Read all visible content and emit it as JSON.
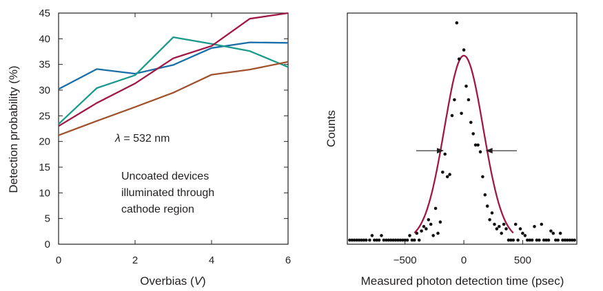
{
  "chart_data": [
    {
      "type": "line",
      "xlabel_prefix": "Overbias (",
      "xlabel_var": "V",
      "xlabel_suffix": ")",
      "ylabel": "Detection probability (%)",
      "xlim": [
        0,
        6
      ],
      "ylim": [
        0,
        45
      ],
      "x_ticks": [
        0,
        2,
        4,
        6
      ],
      "y_ticks": [
        0,
        5,
        10,
        15,
        20,
        25,
        30,
        35,
        40,
        45
      ],
      "grid": false,
      "annotation_lambda_symbol": "λ",
      "annotation_lambda_rest": " = 532 nm",
      "annotation_lines": [
        "Uncoated devices",
        "illuminated through",
        "cathode region"
      ],
      "series": [
        {
          "color": "#1a6fa8",
          "x": [
            0,
            1,
            2,
            3,
            4,
            5,
            6
          ],
          "y": [
            30.2,
            34.1,
            33.2,
            34.9,
            38.2,
            39.3,
            39.2
          ]
        },
        {
          "color": "#1a9a8a",
          "x": [
            0,
            1,
            2,
            3,
            4,
            5,
            6
          ],
          "y": [
            23.4,
            30.4,
            32.9,
            40.3,
            39.0,
            37.6,
            34.5
          ]
        },
        {
          "color": "#a01845",
          "x": [
            0,
            1,
            2,
            3,
            4,
            5,
            6
          ],
          "y": [
            23.0,
            27.5,
            31.3,
            36.2,
            38.6,
            43.9,
            45.0
          ]
        },
        {
          "color": "#a0522d",
          "x": [
            0,
            1,
            2,
            3,
            4,
            5,
            6
          ],
          "y": [
            21.2,
            24.0,
            26.7,
            29.5,
            33.0,
            34.0,
            35.5
          ]
        }
      ]
    },
    {
      "type": "scatter",
      "xlabel": "Measured photon detection time (psec)",
      "ylabel": "Counts",
      "xlim": [
        -990,
        960
      ],
      "ylim": [
        0,
        1.0
      ],
      "x_ticks": [
        -500,
        0,
        500
      ],
      "x_tick_labels": [
        "−500",
        "0",
        "500"
      ],
      "grid": false,
      "fit": {
        "color": "#a01845",
        "center": 0,
        "sigma": 165,
        "amplitude": 0.815,
        "note": "Gaussian fit"
      },
      "fwhm_arrows": {
        "left_x": -170,
        "right_x": 185,
        "level": 0.395
      },
      "points": {
        "x": [
          -970,
          -950,
          -930,
          -910,
          -890,
          -870,
          -850,
          -830,
          -800,
          -780,
          -760,
          -740,
          -720,
          -700,
          -680,
          -660,
          -640,
          -620,
          -600,
          -580,
          -560,
          -540,
          -520,
          -500,
          -480,
          -460,
          -440,
          -420,
          -400,
          -380,
          -360,
          -340,
          -320,
          -300,
          -280,
          -260,
          -240,
          -220,
          -200,
          -180,
          -160,
          -140,
          -120,
          -100,
          -80,
          -60,
          -40,
          -20,
          0,
          20,
          40,
          60,
          80,
          100,
          120,
          140,
          160,
          180,
          200,
          220,
          240,
          260,
          280,
          300,
          320,
          340,
          360,
          380,
          400,
          420,
          440,
          460,
          480,
          500,
          520,
          540,
          560,
          580,
          600,
          620,
          640,
          660,
          680,
          700,
          720,
          740,
          760,
          780,
          800,
          820,
          840,
          860,
          880,
          900,
          920,
          940
        ],
        "y": [
          0.0,
          0.0,
          0.0,
          0.0,
          0.0,
          0.0,
          0.0,
          0.0,
          0.0,
          0.02,
          0.0,
          0.0,
          0.0,
          0.02,
          0.0,
          0.0,
          0.0,
          0.0,
          0.0,
          0.0,
          0.0,
          0.0,
          0.0,
          0.0,
          0.0,
          0.02,
          0.0,
          0.0,
          0.03,
          0.0,
          0.04,
          0.06,
          0.05,
          0.09,
          0.07,
          0.02,
          0.14,
          0.03,
          0.08,
          0.3,
          0.38,
          0.28,
          0.29,
          0.55,
          0.62,
          0.96,
          0.8,
          0.56,
          0.84,
          0.68,
          0.62,
          0.52,
          0.47,
          0.42,
          0.42,
          0.39,
          0.28,
          0.2,
          0.15,
          0.09,
          0.12,
          0.07,
          0.05,
          0.06,
          0.03,
          0.07,
          0.05,
          0.0,
          0.0,
          0.0,
          0.07,
          0.0,
          0.05,
          0.03,
          0.02,
          0.0,
          0.0,
          0.0,
          0.06,
          0.0,
          0.0,
          0.07,
          0.0,
          0.0,
          0.0,
          0.04,
          0.03,
          0.0,
          0.0,
          0.03,
          0.0,
          0.0,
          0.0,
          0.0,
          0.0,
          0.0
        ]
      }
    }
  ]
}
